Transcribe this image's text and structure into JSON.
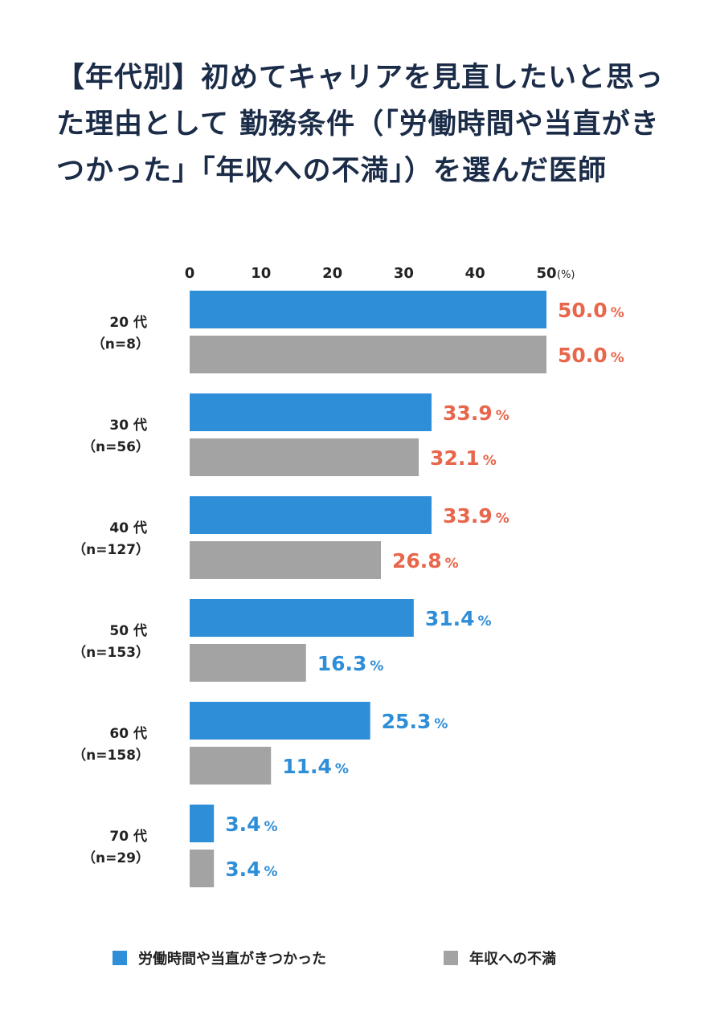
{
  "title": "【年代別】初めてキャリアを見直したいと思った理由として 勤務条件（「労働時間や当直がきつかった」「年収への不満」）を選んだ医師",
  "chart_data": {
    "type": "bar",
    "orientation": "horizontal",
    "title": "【年代別】初めてキャリアを見直したいと思った理由として 勤務条件（「労働時間や当直がきつかった」「年収への不満」）を選んだ医師",
    "categories": [
      {
        "age": "20 代",
        "n": "（n=8）"
      },
      {
        "age": "30 代",
        "n": "（n=56）"
      },
      {
        "age": "40 代",
        "n": "（n=127）"
      },
      {
        "age": "50 代",
        "n": "（n=153）"
      },
      {
        "age": "60 代",
        "n": "（n=158）"
      },
      {
        "age": "70 代",
        "n": "（n=29）"
      }
    ],
    "series": [
      {
        "name": "労働時間や当直がきつかった",
        "color": "#2f8ed8",
        "values": [
          50.0,
          33.9,
          33.9,
          31.4,
          25.3,
          3.4
        ]
      },
      {
        "name": "年収への不満",
        "color": "#a3a3a3",
        "values": [
          50.0,
          32.1,
          26.8,
          16.3,
          11.4,
          3.4
        ]
      }
    ],
    "label_colors": {
      "highlight": "#e8664b",
      "normal": "#2f8ed8"
    },
    "highlighted_age_groups": [
      "20 代",
      "30 代",
      "40 代"
    ],
    "xlim": [
      0,
      50
    ],
    "xticks": [
      "0",
      "10",
      "20",
      "30",
      "40",
      "50"
    ],
    "x_unit": "(%)",
    "value_unit": "%",
    "legend_position": "bottom",
    "grid": false
  }
}
